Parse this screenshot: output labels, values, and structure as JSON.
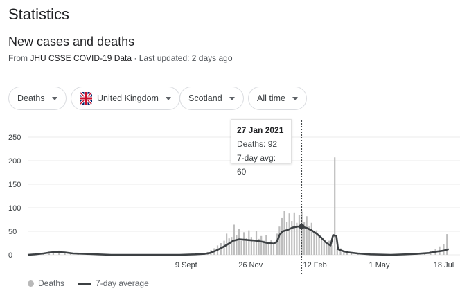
{
  "page_title": "Statistics",
  "section_title": "New cases and deaths",
  "source": {
    "prefix": "From ",
    "link_text": "JHU CSSE COVID-19 Data",
    "suffix": " · Last updated: 2 days ago"
  },
  "filters": {
    "metric": "Deaths",
    "country": "United Kingdom",
    "region": "Scotland",
    "range": "All time"
  },
  "icons": {
    "country_flag": "uk-flag-icon",
    "dropdown": "caret-down-icon"
  },
  "tooltip": {
    "date": "27 Jan 2021",
    "deaths": "Deaths: 92",
    "avg": "7-day avg: 60"
  },
  "legend": {
    "bars_label": "Deaths",
    "line_label": "7-day average"
  },
  "colors": {
    "bar": "#bdbdbd",
    "line": "#3c4043",
    "grid": "#ebebeb"
  },
  "chart_data": {
    "type": "bar",
    "title": "",
    "xlabel": "",
    "ylabel": "",
    "ylim": [
      0,
      250
    ],
    "yticks": [
      "0",
      "50",
      "100",
      "150",
      "200",
      "250"
    ],
    "xticks": [
      {
        "label": "9 Sept",
        "x": "2020-09-09"
      },
      {
        "label": "26 Nov",
        "x": "2020-11-26"
      },
      {
        "label": "12 Feb",
        "x": "2021-02-12"
      },
      {
        "label": "1 May",
        "x": "2021-05-01"
      },
      {
        "label": "18 Jul",
        "x": "2021-07-18"
      }
    ],
    "x_start": "2020-03-01",
    "x_end": "2021-07-26",
    "highlight": {
      "x": "2021-01-27",
      "deaths": 92,
      "avg": 60
    },
    "series": [
      {
        "name": "Deaths",
        "kind": "bar",
        "points": [
          [
            "2020-03-13",
            1
          ],
          [
            "2020-03-20",
            3
          ],
          [
            "2020-03-27",
            7
          ],
          [
            "2020-04-01",
            6
          ],
          [
            "2020-04-08",
            9
          ],
          [
            "2020-04-15",
            5
          ],
          [
            "2020-04-22",
            4
          ],
          [
            "2020-05-01",
            3
          ],
          [
            "2020-05-15",
            2
          ],
          [
            "2020-06-01",
            1
          ],
          [
            "2020-07-01",
            0
          ],
          [
            "2020-08-01",
            0
          ],
          [
            "2020-09-01",
            1
          ],
          [
            "2020-09-15",
            1
          ],
          [
            "2020-09-25",
            2
          ],
          [
            "2020-10-01",
            4
          ],
          [
            "2020-10-05",
            6
          ],
          [
            "2020-10-09",
            10
          ],
          [
            "2020-10-13",
            14
          ],
          [
            "2020-10-17",
            20
          ],
          [
            "2020-10-21",
            25
          ],
          [
            "2020-10-25",
            30
          ],
          [
            "2020-10-28",
            45
          ],
          [
            "2020-10-31",
            35
          ],
          [
            "2020-11-03",
            38
          ],
          [
            "2020-11-06",
            64
          ],
          [
            "2020-11-09",
            42
          ],
          [
            "2020-11-12",
            55
          ],
          [
            "2020-11-15",
            30
          ],
          [
            "2020-11-18",
            48
          ],
          [
            "2020-11-21",
            36
          ],
          [
            "2020-11-24",
            52
          ],
          [
            "2020-11-27",
            38
          ],
          [
            "2020-11-30",
            28
          ],
          [
            "2020-12-03",
            50
          ],
          [
            "2020-12-06",
            34
          ],
          [
            "2020-12-09",
            40
          ],
          [
            "2020-12-12",
            30
          ],
          [
            "2020-12-15",
            42
          ],
          [
            "2020-12-18",
            28
          ],
          [
            "2020-12-21",
            32
          ],
          [
            "2020-12-24",
            25
          ],
          [
            "2020-12-28",
            45
          ],
          [
            "2020-12-31",
            60
          ],
          [
            "2021-01-03",
            78
          ],
          [
            "2021-01-06",
            93
          ],
          [
            "2021-01-09",
            70
          ],
          [
            "2021-01-12",
            88
          ],
          [
            "2021-01-15",
            72
          ],
          [
            "2021-01-18",
            90
          ],
          [
            "2021-01-21",
            68
          ],
          [
            "2021-01-24",
            84
          ],
          [
            "2021-01-27",
            92
          ],
          [
            "2021-01-30",
            70
          ],
          [
            "2021-02-02",
            82
          ],
          [
            "2021-02-05",
            60
          ],
          [
            "2021-02-08",
            68
          ],
          [
            "2021-02-11",
            50
          ],
          [
            "2021-02-14",
            52
          ],
          [
            "2021-02-17",
            40
          ],
          [
            "2021-02-20",
            36
          ],
          [
            "2021-02-23",
            28
          ],
          [
            "2021-02-26",
            24
          ],
          [
            "2021-03-01",
            30
          ],
          [
            "2021-03-04",
            20
          ],
          [
            "2021-03-08",
            207
          ],
          [
            "2021-03-11",
            12
          ],
          [
            "2021-03-15",
            14
          ],
          [
            "2021-03-19",
            8
          ],
          [
            "2021-03-23",
            7
          ],
          [
            "2021-03-28",
            5
          ],
          [
            "2021-04-05",
            3
          ],
          [
            "2021-04-15",
            2
          ],
          [
            "2021-04-25",
            1
          ],
          [
            "2021-05-10",
            1
          ],
          [
            "2021-05-25",
            1
          ],
          [
            "2021-06-05",
            2
          ],
          [
            "2021-06-15",
            3
          ],
          [
            "2021-06-25",
            5
          ],
          [
            "2021-07-02",
            8
          ],
          [
            "2021-07-08",
            12
          ],
          [
            "2021-07-13",
            18
          ],
          [
            "2021-07-18",
            22
          ],
          [
            "2021-07-22",
            44
          ]
        ]
      },
      {
        "name": "7-day average",
        "kind": "line",
        "points": [
          [
            "2020-03-01",
            0
          ],
          [
            "2020-03-10",
            1
          ],
          [
            "2020-03-20",
            3
          ],
          [
            "2020-03-28",
            5
          ],
          [
            "2020-04-05",
            6
          ],
          [
            "2020-04-15",
            5
          ],
          [
            "2020-04-25",
            3
          ],
          [
            "2020-05-10",
            2
          ],
          [
            "2020-05-25",
            1
          ],
          [
            "2020-06-10",
            0
          ],
          [
            "2020-08-01",
            0
          ],
          [
            "2020-09-01",
            0
          ],
          [
            "2020-09-20",
            1
          ],
          [
            "2020-10-01",
            2
          ],
          [
            "2020-10-08",
            4
          ],
          [
            "2020-10-15",
            9
          ],
          [
            "2020-10-22",
            15
          ],
          [
            "2020-10-29",
            22
          ],
          [
            "2020-11-05",
            30
          ],
          [
            "2020-11-12",
            33
          ],
          [
            "2020-11-19",
            32
          ],
          [
            "2020-11-26",
            31
          ],
          [
            "2020-12-03",
            30
          ],
          [
            "2020-12-10",
            28
          ],
          [
            "2020-12-17",
            25
          ],
          [
            "2020-12-24",
            24
          ],
          [
            "2020-12-28",
            28
          ],
          [
            "2020-12-31",
            42
          ],
          [
            "2021-01-04",
            50
          ],
          [
            "2021-01-10",
            53
          ],
          [
            "2021-01-16",
            58
          ],
          [
            "2021-01-22",
            60
          ],
          [
            "2021-01-27",
            60
          ],
          [
            "2021-02-02",
            57
          ],
          [
            "2021-02-08",
            52
          ],
          [
            "2021-02-14",
            45
          ],
          [
            "2021-02-20",
            36
          ],
          [
            "2021-02-26",
            25
          ],
          [
            "2021-03-03",
            20
          ],
          [
            "2021-03-06",
            42
          ],
          [
            "2021-03-10",
            40
          ],
          [
            "2021-03-12",
            12
          ],
          [
            "2021-03-18",
            8
          ],
          [
            "2021-03-25",
            5
          ],
          [
            "2021-04-05",
            3
          ],
          [
            "2021-04-20",
            1
          ],
          [
            "2021-05-15",
            0
          ],
          [
            "2021-06-01",
            1
          ],
          [
            "2021-06-15",
            2
          ],
          [
            "2021-06-30",
            4
          ],
          [
            "2021-07-10",
            7
          ],
          [
            "2021-07-18",
            9
          ],
          [
            "2021-07-24",
            12
          ]
        ]
      }
    ]
  }
}
